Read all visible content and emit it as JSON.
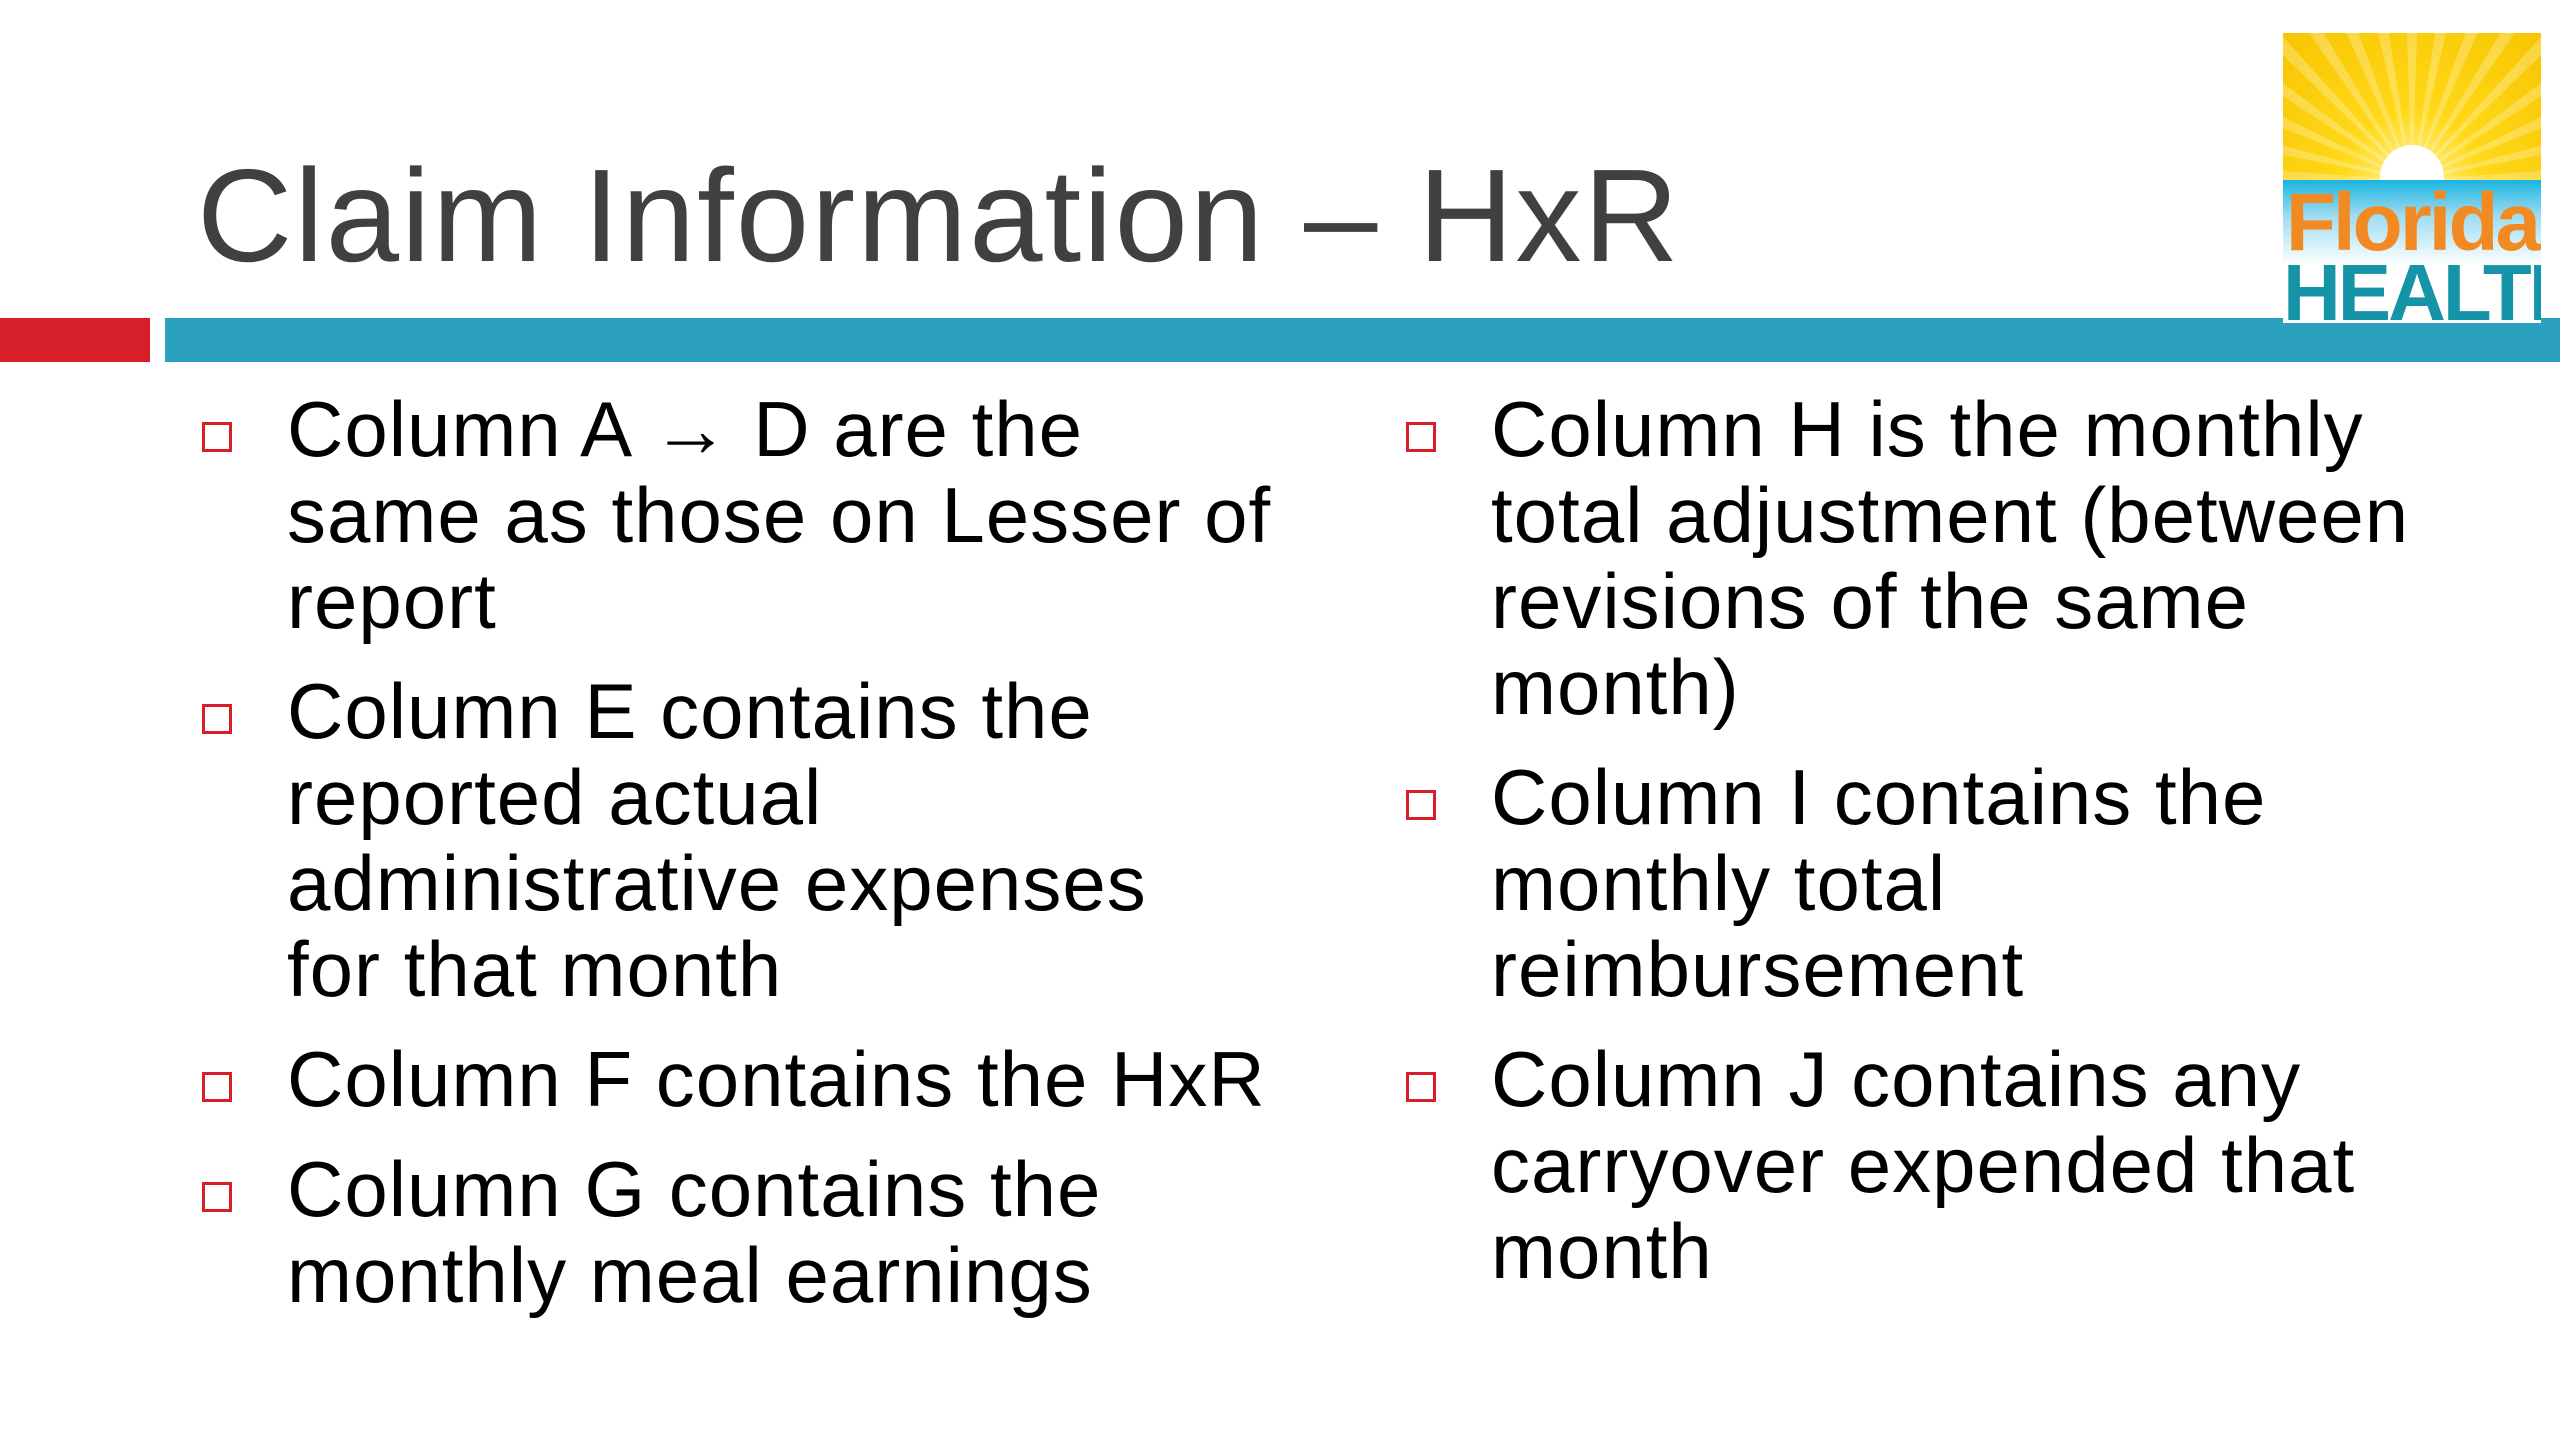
{
  "slide": {
    "title": "Claim Information – HxR",
    "logo": {
      "text_top": "Florida",
      "text_bottom": "HEALTH"
    },
    "colors": {
      "accent_red": "#d71f2a",
      "accent_blue": "#2ca1bd",
      "title": "#404040",
      "bullet_icon": "square-outline"
    },
    "left_bullets": [
      {
        "lines": [
          "Column A → D are the",
          "same as those on Lesser of",
          "report"
        ]
      },
      {
        "lines": [
          "Column E contains the",
          "reported actual",
          "administrative expenses",
          "for that month"
        ]
      },
      {
        "lines": [
          "Column F contains the HxR"
        ]
      },
      {
        "lines": [
          "Column G contains the",
          "monthly meal earnings"
        ]
      }
    ],
    "right_bullets": [
      {
        "lines": [
          "Column H is the monthly",
          "total adjustment (between",
          "revisions of the same",
          "month)"
        ]
      },
      {
        "lines": [
          "Column I contains the",
          "monthly total",
          "reimbursement"
        ]
      },
      {
        "lines": [
          "Column J contains any",
          "carryover expended that",
          "month"
        ]
      }
    ]
  }
}
